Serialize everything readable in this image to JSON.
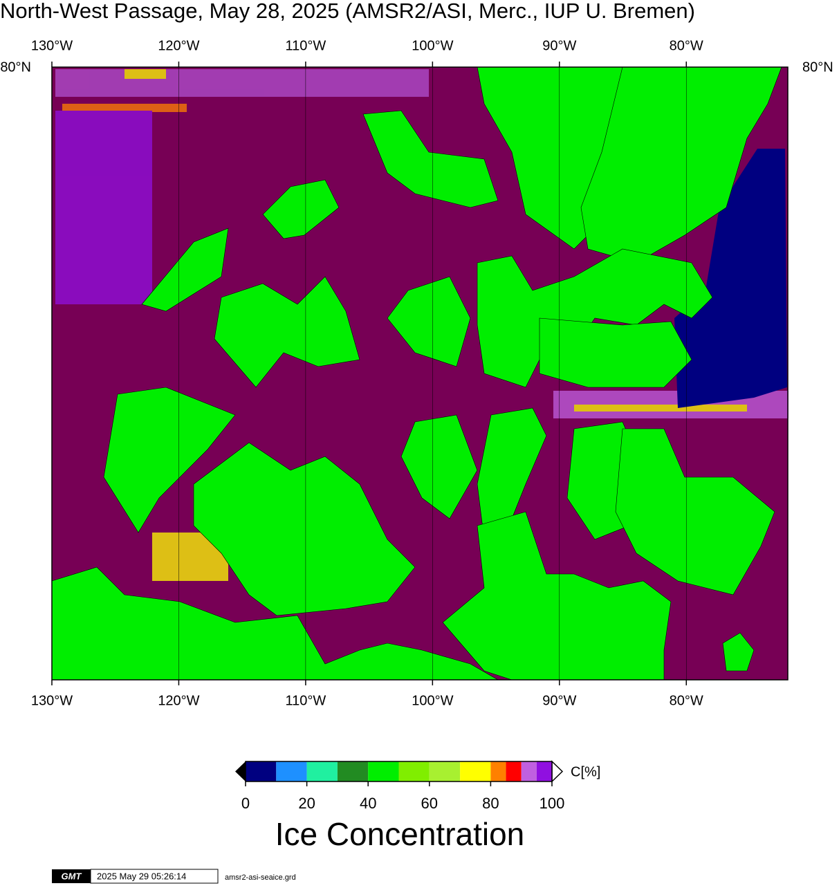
{
  "title": "North-West Passage, May 28, 2025 (AMSR2/ASI, Merc., IUP U. Bremen)",
  "map": {
    "lon_range": [
      -130,
      -72
    ],
    "lon_ticks": [
      {
        "value": -130,
        "label": "130°W"
      },
      {
        "value": -120,
        "label": "120°W"
      },
      {
        "value": -110,
        "label": "110°W"
      },
      {
        "value": -100,
        "label": "100°W"
      },
      {
        "value": -90,
        "label": "90°W"
      },
      {
        "value": -80,
        "label": "80°W"
      }
    ],
    "lat_label": "80°N"
  },
  "colorbar": {
    "range": [
      0,
      100
    ],
    "bins": [
      0,
      10,
      20,
      30,
      40,
      50,
      60,
      70,
      80,
      85,
      90,
      95,
      100
    ],
    "colors": [
      "#000080",
      "#1e90ff",
      "#20f0a0",
      "#228b22",
      "#00ee00",
      "#80ee00",
      "#a8f030",
      "#ffff00",
      "#ff8000",
      "#ff0000",
      "#c060e0",
      "#9010e0"
    ],
    "ticks": [
      0,
      20,
      40,
      60,
      80,
      100
    ],
    "unit": "C[%]",
    "label": "Ice Concentration"
  },
  "footer": {
    "logo": "GMT",
    "timestamp": "2025 May 29 05:26:14",
    "file": "amsr2-asi-seaice.grd"
  }
}
